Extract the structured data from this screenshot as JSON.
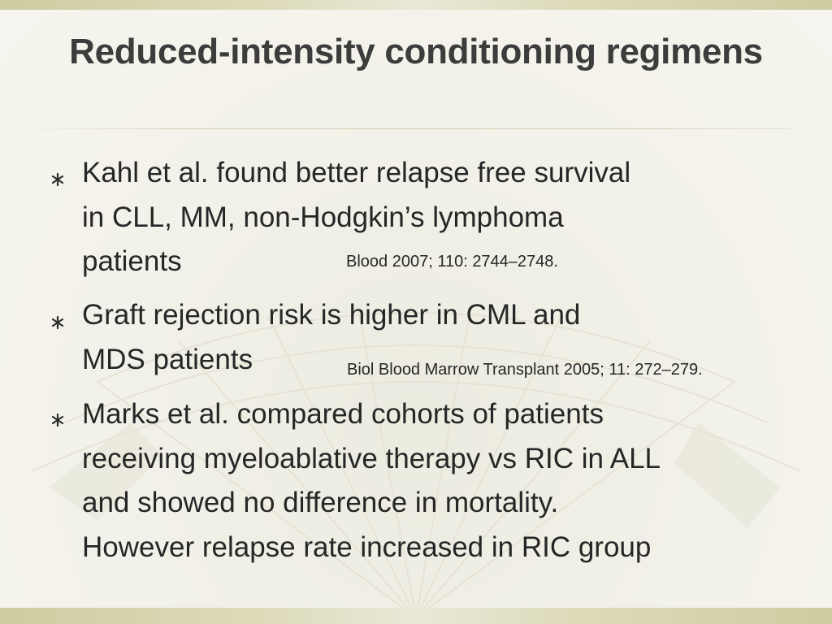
{
  "slide": {
    "title": "Reduced-intensity conditioning regimens",
    "bullets": [
      {
        "lines": [
          "Kahl et al. found better relapse free survival",
          "in CLL, MM, non-Hodgkin’s lymphoma",
          "patients"
        ],
        "citation": "Blood 2007; 110: 2744–2748."
      },
      {
        "lines": [
          "Graft rejection risk is higher in CML and",
          "MDS patients"
        ],
        "citation": "Biol Blood Marrow Transplant 2005; 11: 272–279."
      },
      {
        "lines": [
          "Marks et al. compared cohorts of patients",
          "receiving myeloablative therapy vs RIC in ALL",
          "and showed no difference in mortality.",
          "However relapse rate increased in RIC group"
        ]
      }
    ],
    "bullet_icon": "asterisk-bullet-icon",
    "colors": {
      "background": "#f2f1e8",
      "band": "#d6d4b0",
      "text": "#262626",
      "title": "#3c3c3c"
    }
  }
}
